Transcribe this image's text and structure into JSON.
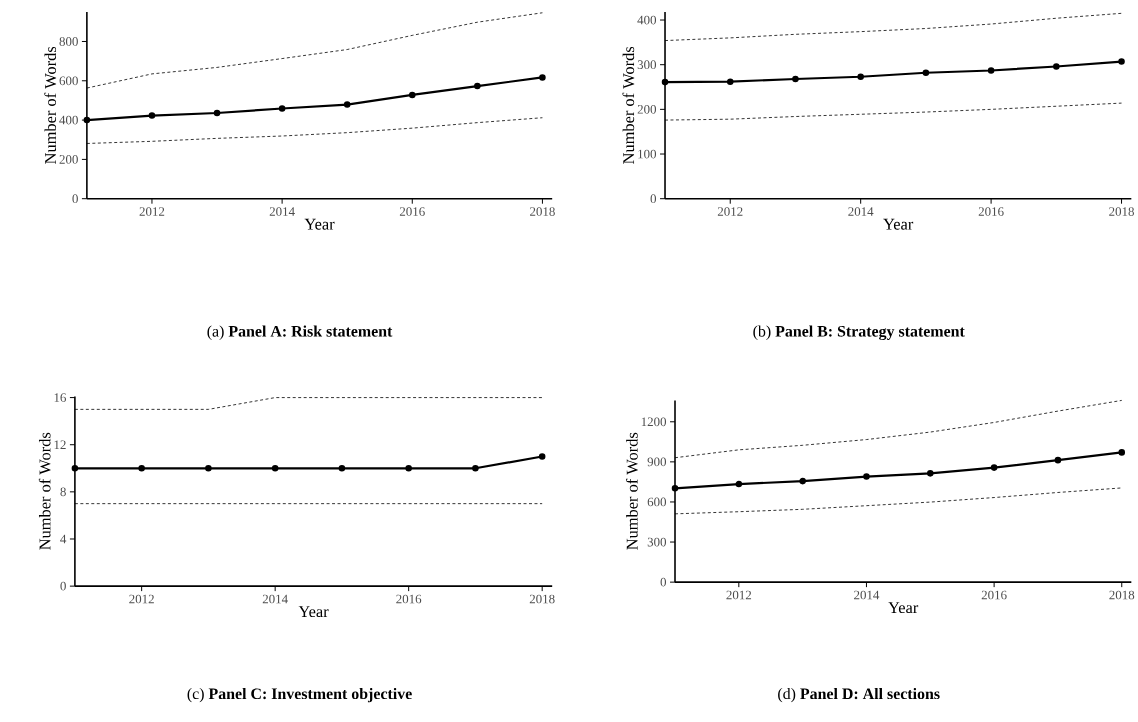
{
  "chart_data": [
    {
      "type": "line",
      "title": "(a) **Panel A: Risk statement**",
      "xlabel": "Year",
      "ylabel": "Number of Words",
      "x": [
        2011,
        2012,
        2013,
        2014,
        2015,
        2016,
        2017,
        2018
      ],
      "xlim": [
        2011,
        2018.15
      ],
      "xticks": [
        2012,
        2014,
        2016,
        2018
      ],
      "ylim": [
        0,
        950
      ],
      "yticks": [
        0,
        200,
        400,
        600,
        800
      ],
      "series": [
        {
          "color": "#000000",
          "marker": "circle",
          "line_style": "solid",
          "values": [
            400,
            423,
            436,
            459,
            479,
            528,
            573,
            617
          ]
        },
        {
          "color": "#000000",
          "marker": "none",
          "line_style": "dashed",
          "values": [
            563,
            635,
            668,
            713,
            759,
            831,
            898,
            946
          ]
        },
        {
          "color": "#000000",
          "marker": "none",
          "line_style": "dashed",
          "values": [
            281,
            292,
            307,
            319,
            336,
            359,
            387,
            412
          ]
        }
      ]
    },
    {
      "type": "line",
      "title": "(b) **Panel B: Strategy statement**",
      "xlabel": "Year",
      "ylabel": "Number of Words",
      "x": [
        2011,
        2012,
        2013,
        2014,
        2015,
        2016,
        2017,
        2018
      ],
      "xlim": [
        2011,
        2018.15
      ],
      "xticks": [
        2012,
        2014,
        2016,
        2018
      ],
      "ylim": [
        0,
        418
      ],
      "yticks": [
        0,
        100,
        200,
        300,
        400
      ],
      "series": [
        {
          "color": "#000000",
          "marker": "circle",
          "line_style": "solid",
          "values": [
            261,
            262,
            268,
            273,
            282,
            287,
            296,
            307
          ]
        },
        {
          "color": "#000000",
          "marker": "none",
          "line_style": "dashed",
          "values": [
            354,
            360,
            368,
            374,
            381,
            391,
            404,
            415
          ]
        },
        {
          "color": "#000000",
          "marker": "none",
          "line_style": "dashed",
          "values": [
            176,
            178,
            184,
            189,
            194,
            200,
            207,
            214
          ]
        }
      ]
    },
    {
      "type": "line",
      "title": "(c) **Panel C: Investment objective**",
      "xlabel": "Year",
      "ylabel": "Number of Words",
      "x": [
        2011,
        2012,
        2013,
        2014,
        2015,
        2016,
        2017,
        2018
      ],
      "xlim": [
        2011,
        2018.15
      ],
      "xticks": [
        2012,
        2014,
        2016,
        2018
      ],
      "ylim": [
        0,
        16.1
      ],
      "yticks": [
        0,
        4,
        8,
        12,
        16
      ],
      "series": [
        {
          "color": "#000000",
          "marker": "circle",
          "line_style": "solid",
          "values": [
            10,
            10,
            10,
            10,
            10,
            10,
            10,
            11
          ]
        },
        {
          "color": "#000000",
          "marker": "none",
          "line_style": "dashed",
          "values": [
            15,
            15,
            15,
            16,
            16,
            16,
            16,
            16
          ]
        },
        {
          "color": "#000000",
          "marker": "none",
          "line_style": "dashed",
          "values": [
            7,
            7,
            7,
            7,
            7,
            7,
            7,
            7
          ]
        }
      ]
    },
    {
      "type": "line",
      "title": "(d) **Panel D: All sections**",
      "xlabel": "Year",
      "ylabel": "Number of Words",
      "x": [
        2011,
        2012,
        2013,
        2014,
        2015,
        2016,
        2017,
        2018
      ],
      "xlim": [
        2011,
        2018.15
      ],
      "xticks": [
        2012,
        2014,
        2016,
        2018
      ],
      "ylim": [
        0,
        1360
      ],
      "yticks": [
        0,
        300,
        600,
        900,
        1200
      ],
      "series": [
        {
          "color": "#000000",
          "marker": "circle",
          "line_style": "solid",
          "values": [
            702,
            734,
            756,
            790,
            814,
            857,
            913,
            971
          ]
        },
        {
          "color": "#000000",
          "marker": "none",
          "line_style": "dashed",
          "values": [
            931,
            990,
            1024,
            1067,
            1123,
            1195,
            1280,
            1360
          ]
        },
        {
          "color": "#000000",
          "marker": "none",
          "line_style": "dashed",
          "values": [
            511,
            527,
            545,
            572,
            599,
            633,
            671,
            705
          ]
        }
      ]
    }
  ]
}
